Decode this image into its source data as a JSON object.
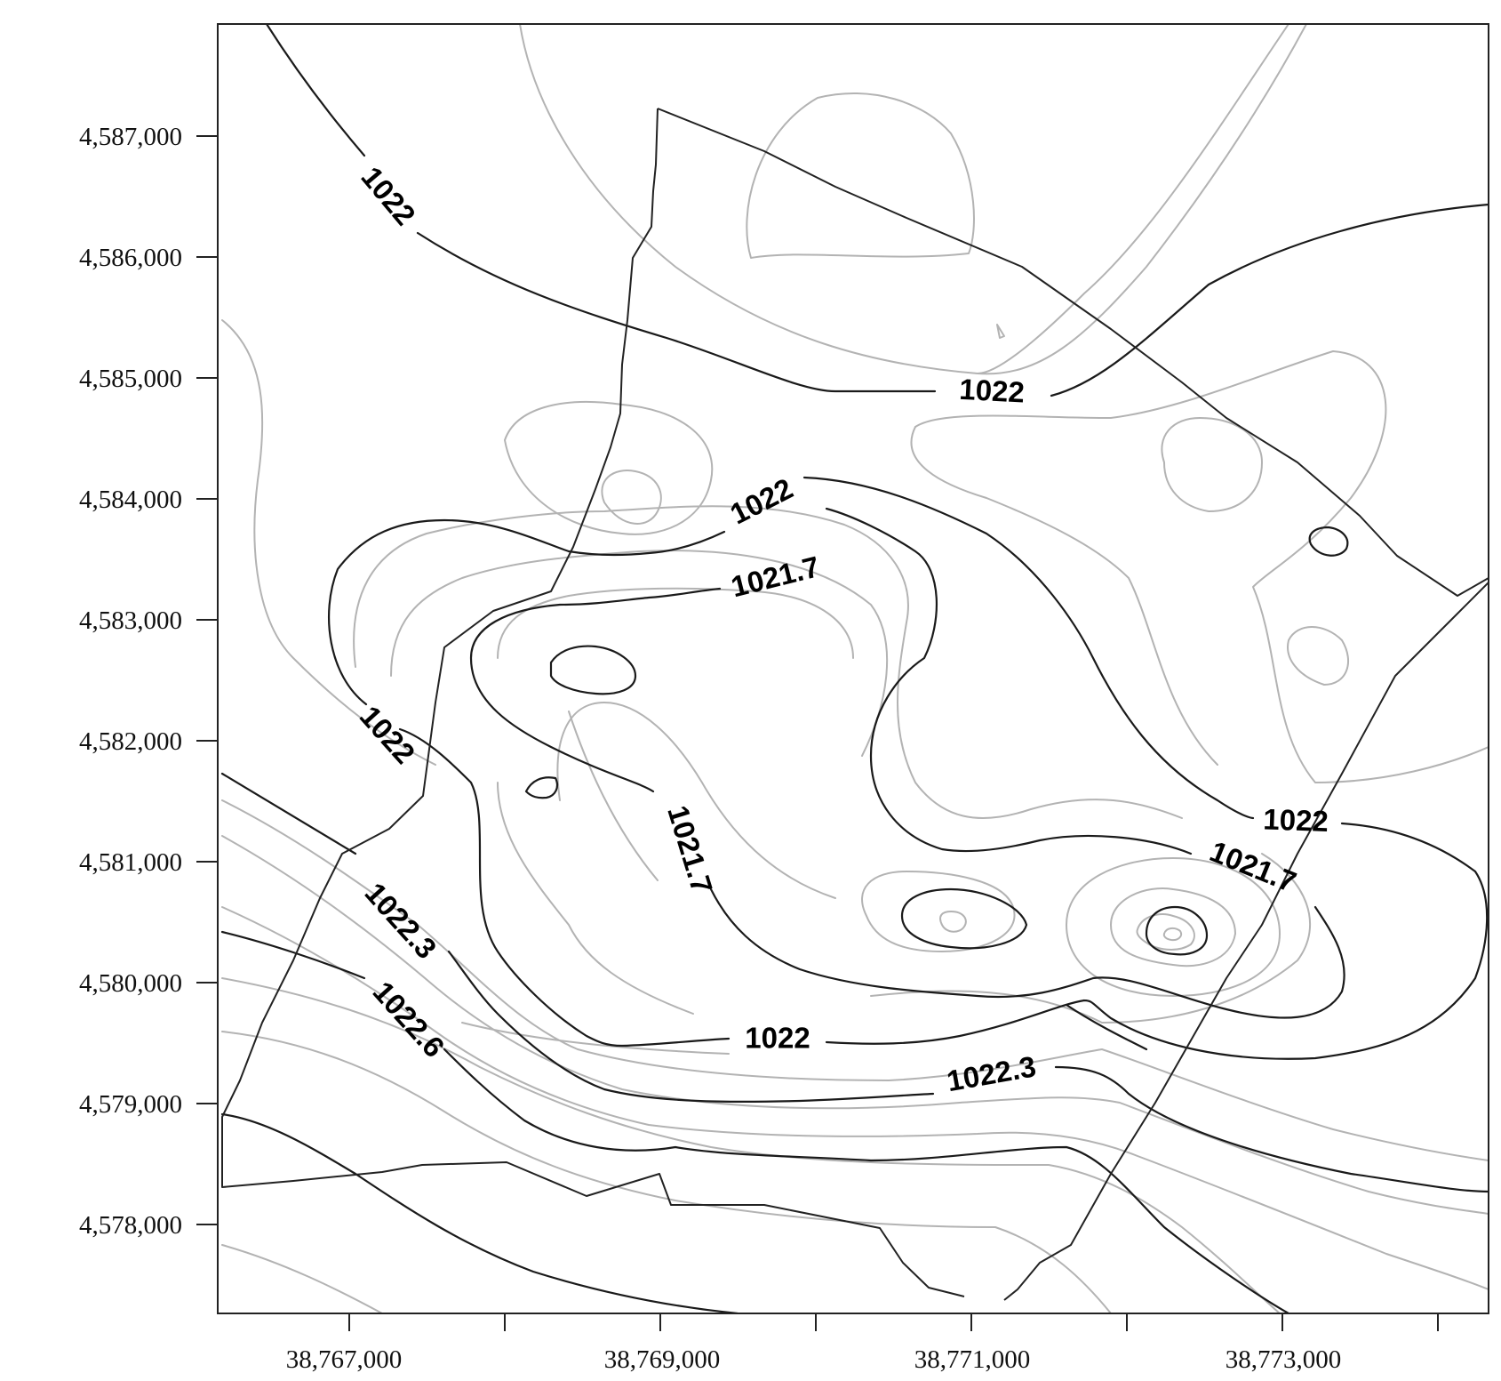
{
  "map": {
    "x_axis": {
      "ticks": [
        "38,767,000",
        "38,769,000",
        "38,771,000",
        "38,773,000"
      ]
    },
    "y_axis": {
      "ticks": [
        "4,587,000",
        "4,586,000",
        "4,585,000",
        "4,584,000",
        "4,583,000",
        "4,582,000",
        "4,581,000",
        "4,580,000",
        "4,579,000",
        "4,578,000"
      ]
    },
    "contour_labels": [
      "1022",
      "1022",
      "1022",
      "1021.7",
      "1022",
      "1021.7",
      "1022",
      "1021.7",
      "1022.3",
      "1022.6",
      "1022",
      "1022.3"
    ],
    "colors": {
      "major_contour": "#1a1a1a",
      "minor_contour": "#b3b3b3",
      "boundary": "#222222"
    }
  }
}
